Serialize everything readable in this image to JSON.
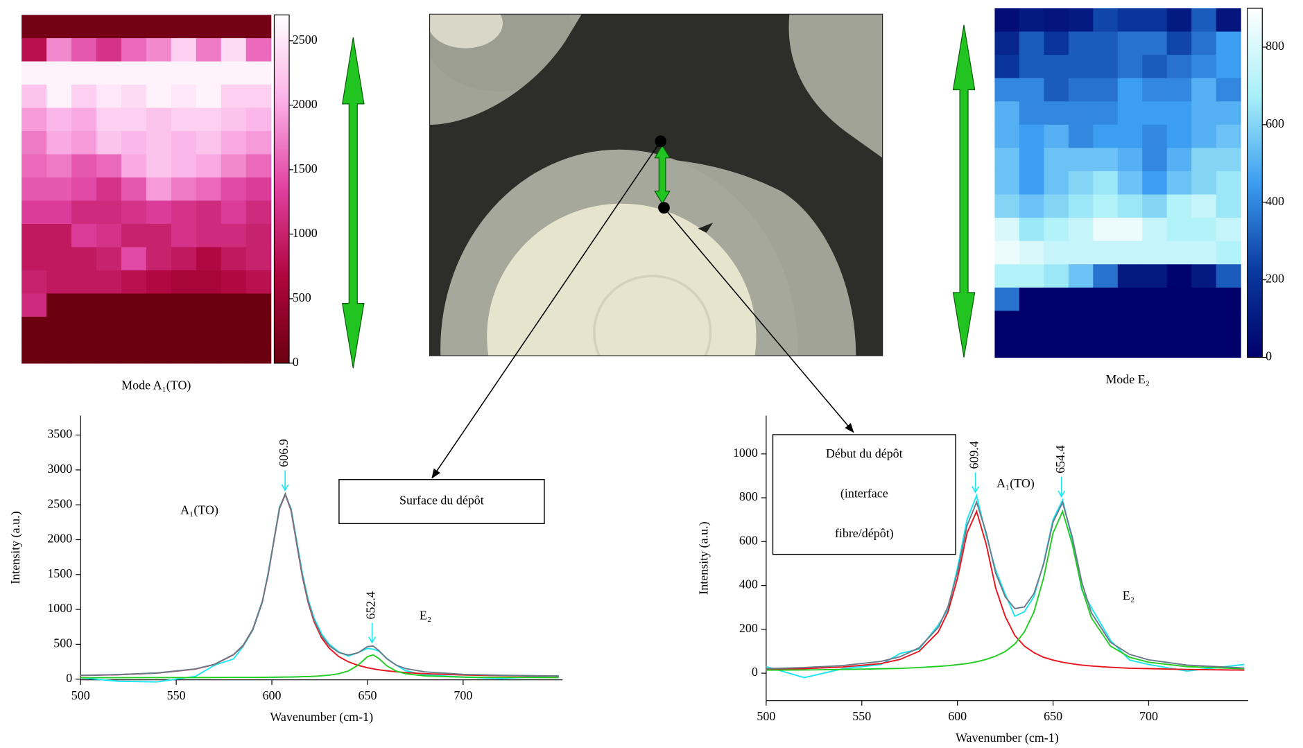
{
  "chart_data": [
    {
      "type": "heatmap",
      "label": "Mode A₁(TO)",
      "clim": [
        0,
        2700
      ],
      "cticks": [
        0,
        500,
        1000,
        1500,
        2000,
        2500
      ],
      "colorscale": [
        "#6b0010",
        "#b0063e",
        "#e040a0",
        "#fbaee6",
        "#ffffff"
      ],
      "values": [
        [
          100,
          100,
          100,
          100,
          100,
          100,
          100,
          100,
          100,
          100
        ],
        [
          800,
          1800,
          1500,
          1200,
          1600,
          1800,
          2300,
          1700,
          2400,
          1600
        ],
        [
          2600,
          2600,
          2600,
          2600,
          2600,
          2600,
          2600,
          2600,
          2600,
          2600
        ],
        [
          2200,
          2600,
          2300,
          2500,
          2400,
          2600,
          2500,
          2600,
          2300,
          2300
        ],
        [
          1900,
          2100,
          2000,
          2300,
          2300,
          2200,
          2300,
          2300,
          2200,
          2100
        ],
        [
          1700,
          2000,
          1900,
          2200,
          2100,
          2200,
          2100,
          2200,
          2000,
          1900
        ],
        [
          1600,
          1700,
          1500,
          1600,
          2000,
          2200,
          2100,
          2000,
          1800,
          1600
        ],
        [
          1500,
          1500,
          1400,
          1200,
          1500,
          1900,
          1700,
          1600,
          1400,
          1300
        ],
        [
          1300,
          1300,
          1100,
          1100,
          1200,
          1300,
          1200,
          1100,
          1300,
          1100
        ],
        [
          900,
          900,
          1300,
          1200,
          1000,
          1000,
          1200,
          1100,
          1100,
          1000
        ],
        [
          900,
          900,
          900,
          1000,
          1400,
          1000,
          900,
          700,
          900,
          1000
        ],
        [
          1000,
          900,
          900,
          900,
          800,
          700,
          600,
          600,
          700,
          800
        ],
        [
          1100,
          0,
          0,
          0,
          0,
          0,
          0,
          0,
          0,
          0
        ],
        [
          0,
          0,
          0,
          0,
          0,
          0,
          0,
          0,
          0,
          0
        ],
        [
          0,
          0,
          0,
          0,
          0,
          0,
          0,
          0,
          0,
          0
        ]
      ]
    },
    {
      "type": "heatmap",
      "label": "Mode E₂",
      "clim": [
        0,
        900
      ],
      "cticks": [
        0,
        200,
        400,
        600,
        800
      ],
      "colorscale": [
        "#00006b",
        "#0a3aa0",
        "#3c9ef0",
        "#a8f0f8",
        "#ffffff"
      ],
      "values": [
        [
          50,
          100,
          80,
          100,
          250,
          200,
          200,
          100,
          300,
          80
        ],
        [
          150,
          300,
          200,
          300,
          300,
          350,
          350,
          250,
          350,
          450
        ],
        [
          200,
          300,
          300,
          300,
          300,
          350,
          300,
          350,
          400,
          450
        ],
        [
          400,
          400,
          300,
          350,
          350,
          450,
          400,
          400,
          500,
          400
        ],
        [
          500,
          400,
          400,
          400,
          400,
          450,
          450,
          450,
          500,
          500
        ],
        [
          500,
          450,
          500,
          400,
          450,
          450,
          400,
          450,
          500,
          550
        ],
        [
          550,
          450,
          550,
          550,
          550,
          500,
          400,
          500,
          600,
          600
        ],
        [
          550,
          450,
          550,
          600,
          650,
          550,
          450,
          550,
          600,
          650
        ],
        [
          600,
          550,
          600,
          650,
          700,
          650,
          600,
          700,
          750,
          650
        ],
        [
          800,
          650,
          700,
          750,
          850,
          850,
          750,
          700,
          700,
          750
        ],
        [
          850,
          800,
          750,
          750,
          750,
          750,
          750,
          750,
          750,
          700
        ],
        [
          700,
          700,
          650,
          550,
          350,
          100,
          100,
          10,
          100,
          300
        ],
        [
          350,
          0,
          0,
          0,
          0,
          0,
          0,
          0,
          0,
          0
        ],
        [
          0,
          0,
          0,
          0,
          0,
          0,
          0,
          0,
          0,
          0
        ],
        [
          0,
          0,
          0,
          0,
          0,
          0,
          0,
          0,
          0,
          0
        ]
      ]
    },
    {
      "type": "line",
      "xlabel": "Wavenumber (cm-1)",
      "ylabel": "Intensity (a.u.)",
      "xlim": [
        500,
        752
      ],
      "ylim": [
        -10,
        3780
      ],
      "xticks": [
        500,
        550,
        600,
        650,
        700
      ],
      "yticks": [
        0,
        500,
        1000,
        1500,
        2000,
        2500,
        3000,
        3500
      ],
      "x": [
        500,
        520,
        540,
        560,
        570,
        580,
        585,
        590,
        595,
        598,
        601,
        604,
        607,
        610,
        613,
        616,
        619,
        622,
        626,
        630,
        635,
        640,
        645,
        650,
        653,
        656,
        660,
        665,
        670,
        680,
        700,
        720,
        750
      ],
      "series": [
        {
          "color": "#19e6f0",
          "values": [
            20,
            -30,
            -40,
            40,
            200,
            290,
            470,
            700,
            1100,
            1520,
            1990,
            2470,
            2640,
            2450,
            1980,
            1510,
            1140,
            880,
            650,
            500,
            390,
            330,
            380,
            440,
            430,
            400,
            300,
            200,
            120,
            60,
            30,
            10,
            50
          ]
        },
        {
          "color": "#e8141e",
          "values": [
            53,
            64,
            87,
            144,
            210,
            350,
            482,
            709,
            1113,
            1494,
            1974,
            2447,
            2650,
            2420,
            1940,
            1462,
            1095,
            829,
            592,
            443,
            324,
            249,
            199,
            164,
            147,
            134,
            120,
            106,
            94,
            78,
            60,
            50,
            43
          ]
        },
        {
          "color": "#22cc22",
          "values": [
            21,
            21,
            22,
            22,
            23,
            24,
            25,
            25,
            26,
            27,
            28,
            29,
            30,
            31,
            33,
            35,
            38,
            41,
            48,
            57,
            78,
            117,
            198,
            323,
            348,
            295,
            194,
            115,
            77,
            46,
            29,
            25,
            22
          ]
        },
        {
          "color": "#6a7a8a",
          "values": [
            54,
            65,
            89,
            146,
            213,
            354,
            487,
            714,
            1119,
            1501,
            1982,
            2456,
            2660,
            2431,
            1953,
            1477,
            1113,
            850,
            620,
            480,
            382,
            346,
            377,
            467,
            475,
            409,
            294,
            201,
            151,
            104,
            69,
            55,
            45
          ]
        }
      ],
      "peaks": [
        "606.9",
        "652.4"
      ],
      "peak_color": "#19e6f0",
      "mode_labels": [
        "A₁(TO)",
        "E₂"
      ],
      "callout": [
        "Surface du dépôt"
      ]
    },
    {
      "type": "line",
      "xlabel": "Wavenumber (cm-1)",
      "ylabel": "Intensity (a.u.)",
      "xlim": [
        500,
        752
      ],
      "ylim": [
        -125,
        1175
      ],
      "xticks": [
        500,
        550,
        600,
        650,
        700
      ],
      "yticks": [
        0,
        200,
        400,
        600,
        800,
        1000
      ],
      "x": [
        500,
        520,
        540,
        560,
        570,
        580,
        590,
        595,
        600,
        605,
        610,
        615,
        620,
        625,
        630,
        635,
        640,
        645,
        650,
        655,
        660,
        665,
        670,
        680,
        690,
        700,
        720,
        750
      ],
      "series": [
        {
          "color": "#19e6f0",
          "values": [
            30,
            -20,
            20,
            40,
            90,
            110,
            220,
            290,
            480,
            700,
            810,
            630,
            470,
            360,
            260,
            280,
            350,
            500,
            700,
            790,
            610,
            380,
            300,
            150,
            60,
            40,
            10,
            40
          ]
        },
        {
          "color": "#e8141e",
          "values": [
            17,
            21,
            28,
            44,
            63,
            100,
            188,
            279,
            432,
            639,
            738,
            589,
            388,
            259,
            172,
            124,
            94,
            73,
            60,
            50,
            43,
            37,
            33,
            27,
            23,
            21,
            17,
            14
          ]
        },
        {
          "color": "#22cc22",
          "values": [
            14,
            15,
            17,
            20,
            22,
            26,
            31,
            34,
            39,
            44,
            52,
            63,
            78,
            99,
            133,
            188,
            279,
            432,
            639,
            738,
            589,
            388,
            253,
            124,
            73,
            50,
            30,
            20
          ]
        },
        {
          "color": "#6a7a8a",
          "values": [
            21,
            26,
            35,
            54,
            75,
            116,
            209,
            303,
            461,
            673,
            780,
            642,
            456,
            348,
            295,
            302,
            363,
            495,
            689,
            778,
            622,
            415,
            276,
            141,
            86,
            61,
            37,
            24
          ]
        }
      ],
      "peaks": [
        "609.4",
        "654.4"
      ],
      "peak_color": "#19e6f0",
      "mode_labels": [
        "A₁(TO)",
        "E₂"
      ],
      "callout": [
        "Début du dépôt",
        "(interface",
        "fibre/dépôt)"
      ]
    }
  ]
}
